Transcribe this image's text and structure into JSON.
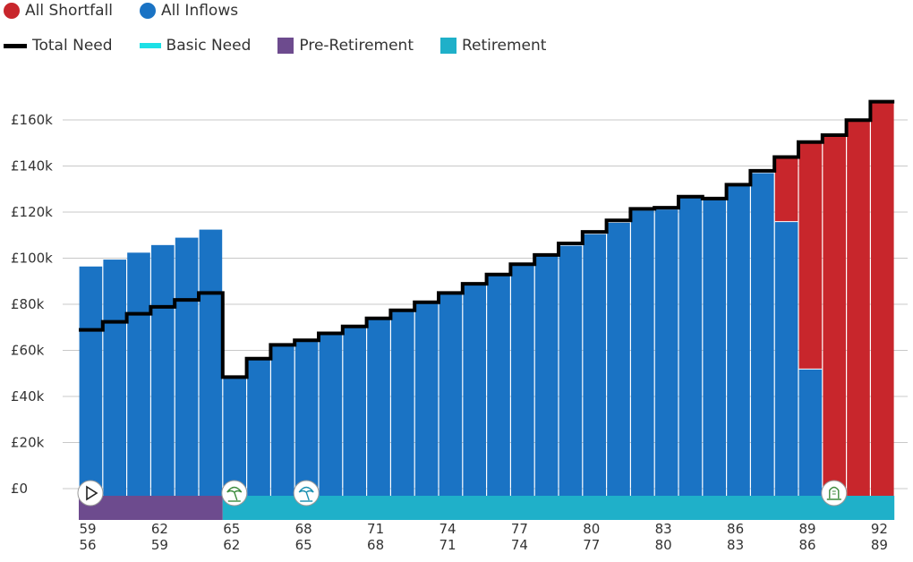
{
  "legend": {
    "row1": [
      {
        "label": "All Shortfall",
        "color": "#c8262c",
        "shape": "circle"
      },
      {
        "label": "All Inflows",
        "color": "#1a73c4",
        "shape": "circle"
      }
    ],
    "row2": [
      {
        "label": "Total Need",
        "color": "#000000",
        "shape": "line"
      },
      {
        "label": "Basic Need",
        "color": "#1de0e6",
        "shape": "bar"
      },
      {
        "label": "Pre-Retirement",
        "color": "#6d4b8e",
        "shape": "square"
      },
      {
        "label": "Retirement",
        "color": "#1fb0c9",
        "shape": "square"
      }
    ]
  },
  "chart_data": {
    "type": "bar",
    "stacked": true,
    "y_ticks": [
      "£0",
      "£20k",
      "£40k",
      "£60k",
      "£80k",
      "£100k",
      "£120k",
      "£140k",
      "£160k"
    ],
    "ylim": [
      0,
      175000
    ],
    "grid": true,
    "ages_primary": [
      59,
      60,
      61,
      62,
      63,
      64,
      65,
      66,
      67,
      68,
      69,
      70,
      71,
      72,
      73,
      74,
      75,
      76,
      77,
      78,
      79,
      80,
      81,
      82,
      83,
      84,
      85,
      86,
      87,
      88,
      89,
      90,
      91,
      92
    ],
    "ages_secondary": [
      56,
      57,
      58,
      59,
      60,
      61,
      62,
      63,
      64,
      65,
      66,
      67,
      68,
      69,
      70,
      71,
      72,
      73,
      74,
      75,
      76,
      77,
      78,
      79,
      80,
      81,
      82,
      83,
      84,
      85,
      86,
      87,
      88,
      89
    ],
    "x_tick_labels_primary": [
      "59",
      "62",
      "65",
      "68",
      "71",
      "74",
      "77",
      "80",
      "83",
      "86",
      "89",
      "92"
    ],
    "x_tick_labels_secondary": [
      "56",
      "59",
      "62",
      "65",
      "68",
      "71",
      "74",
      "77",
      "80",
      "83",
      "86",
      "89"
    ],
    "series": [
      {
        "name": "All Inflows",
        "color": "#1a73c4",
        "values": [
          99500,
          102500,
          105500,
          108800,
          112000,
          115500,
          51000,
          59000,
          65000,
          67200,
          70000,
          73200,
          76500,
          80000,
          83500,
          87500,
          91500,
          95500,
          99800,
          104000,
          108500,
          113500,
          118500,
          123800,
          124200,
          129200,
          128800,
          134500,
          140000,
          119000,
          55000,
          0,
          0,
          0
        ]
      },
      {
        "name": "All Shortfall",
        "color": "#c8262c",
        "values": [
          0,
          0,
          0,
          0,
          0,
          0,
          0,
          0,
          0,
          0,
          0,
          0,
          0,
          0,
          0,
          0,
          0,
          0,
          0,
          0,
          0,
          0,
          0,
          0,
          0,
          0,
          0,
          0,
          0,
          27500,
          98000,
          156000,
          162500,
          170500
        ]
      }
    ],
    "total_need": [
      72000,
      75500,
      79000,
      82000,
      85000,
      88000,
      51500,
      59500,
      65500,
      67500,
      70500,
      73500,
      77000,
      80500,
      84000,
      88000,
      92000,
      96000,
      100500,
      104500,
      109500,
      114500,
      119500,
      124500,
      125000,
      129800,
      129000,
      135000,
      141000,
      147000,
      153500,
      156500,
      163000,
      171000
    ],
    "phases": [
      {
        "name": "Pre-Retirement",
        "color": "#6d4b8e",
        "from_age": 59,
        "to_age": 65
      },
      {
        "name": "Retirement",
        "color": "#1fb0c9",
        "from_age": 65,
        "to_age": 93
      }
    ],
    "events": [
      {
        "icon": "play-icon",
        "age": 59
      },
      {
        "icon": "umbrella-icon",
        "age": 65
      },
      {
        "icon": "umbrella-icon",
        "age": 68
      },
      {
        "icon": "gravestone-icon",
        "age": 90
      }
    ]
  }
}
